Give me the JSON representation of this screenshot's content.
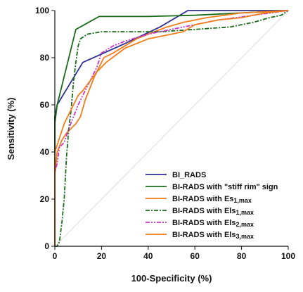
{
  "chart_data": {
    "type": "line",
    "title": "",
    "xlabel": "100-Specificity (%)",
    "ylabel": "Sensitivity (%)",
    "xlim": [
      0,
      100
    ],
    "ylim": [
      0,
      100
    ],
    "xticks": [
      "0",
      "20",
      "40",
      "60",
      "80",
      "100"
    ],
    "yticks": [
      "0",
      "20",
      "40",
      "60",
      "80",
      "100"
    ],
    "grid": false,
    "legend_position": "bottom-right",
    "reference_line": {
      "x": [
        0,
        100
      ],
      "y": [
        0,
        100
      ],
      "color": "#dddddd"
    },
    "series": [
      {
        "name": "BI_RADS",
        "color": "#2e3192",
        "dash": "solid",
        "points": [
          [
            0,
            0
          ],
          [
            0,
            55
          ],
          [
            1,
            60
          ],
          [
            12,
            78
          ],
          [
            30,
            86
          ],
          [
            45,
            93
          ],
          [
            57,
            100
          ],
          [
            100,
            100
          ]
        ]
      },
      {
        "name": "BI-RADS with \"stiff rim\" sign",
        "color": "#1b6b1b",
        "dash": "solid",
        "points": [
          [
            0,
            0
          ],
          [
            0,
            52
          ],
          [
            1,
            60
          ],
          [
            9,
            92
          ],
          [
            19,
            97.5
          ],
          [
            40,
            97.5
          ],
          [
            60,
            98
          ],
          [
            100,
            100
          ]
        ]
      },
      {
        "name": "BI-RADS with Es1,max",
        "sub": "1,max",
        "color": "#f07d1a",
        "dash": "solid",
        "points": [
          [
            0,
            0
          ],
          [
            0,
            30
          ],
          [
            1,
            40
          ],
          [
            3,
            45
          ],
          [
            5,
            48
          ],
          [
            7,
            50
          ],
          [
            9,
            52
          ],
          [
            11,
            55
          ],
          [
            13,
            62
          ],
          [
            15,
            67
          ],
          [
            17,
            72
          ],
          [
            19,
            76
          ],
          [
            21,
            80
          ],
          [
            25,
            82
          ],
          [
            30,
            85
          ],
          [
            35,
            88
          ],
          [
            40,
            90
          ],
          [
            48,
            93
          ],
          [
            55,
            95
          ],
          [
            65,
            97
          ],
          [
            80,
            99
          ],
          [
            100,
            100
          ]
        ]
      },
      {
        "name": "BI-RADS with Els1,max",
        "sub": "1,max",
        "color": "#1b6b1b",
        "dash": "dashdot",
        "points": [
          [
            0,
            0
          ],
          [
            1,
            0
          ],
          [
            2,
            2
          ],
          [
            3,
            10
          ],
          [
            4,
            20
          ],
          [
            5,
            38
          ],
          [
            6,
            50
          ],
          [
            7,
            58
          ],
          [
            8,
            70
          ],
          [
            9,
            78
          ],
          [
            10,
            85
          ],
          [
            11,
            88
          ],
          [
            14,
            90
          ],
          [
            20,
            91
          ],
          [
            30,
            91
          ],
          [
            45,
            91
          ],
          [
            60,
            92
          ],
          [
            75,
            93
          ],
          [
            85,
            95
          ],
          [
            92,
            97
          ],
          [
            97,
            98
          ],
          [
            100,
            100
          ]
        ]
      },
      {
        "name": "BI-RADS with Els2,max",
        "sub": "2,max",
        "color": "#cc33cc",
        "dash": "dashdotdot",
        "points": [
          [
            0,
            0
          ],
          [
            0,
            32
          ],
          [
            1,
            35
          ],
          [
            2,
            42
          ],
          [
            4,
            44
          ],
          [
            6,
            50
          ],
          [
            8,
            55
          ],
          [
            10,
            60
          ],
          [
            12,
            64
          ],
          [
            14,
            68
          ],
          [
            16,
            72
          ],
          [
            18,
            76
          ],
          [
            20,
            82
          ],
          [
            25,
            85
          ],
          [
            30,
            87
          ],
          [
            40,
            90
          ],
          [
            55,
            93
          ],
          [
            70,
            96
          ],
          [
            85,
            98
          ],
          [
            100,
            100
          ]
        ]
      },
      {
        "name": "BI-RADS with Els3,max",
        "sub": "3,max",
        "color": "#f07d1a",
        "dash": "solid",
        "points": [
          [
            0,
            0
          ],
          [
            0,
            40
          ],
          [
            2,
            46
          ],
          [
            4,
            52
          ],
          [
            6,
            56
          ],
          [
            8,
            60
          ],
          [
            10,
            64
          ],
          [
            12,
            66
          ],
          [
            15,
            70
          ],
          [
            18,
            74
          ],
          [
            22,
            78
          ],
          [
            26,
            81
          ],
          [
            30,
            84
          ],
          [
            35,
            86
          ],
          [
            40,
            88
          ],
          [
            45,
            89
          ],
          [
            50,
            90
          ],
          [
            55,
            91
          ],
          [
            60,
            94
          ],
          [
            70,
            96
          ],
          [
            80,
            97
          ],
          [
            90,
            99
          ],
          [
            100,
            100
          ]
        ]
      }
    ]
  }
}
